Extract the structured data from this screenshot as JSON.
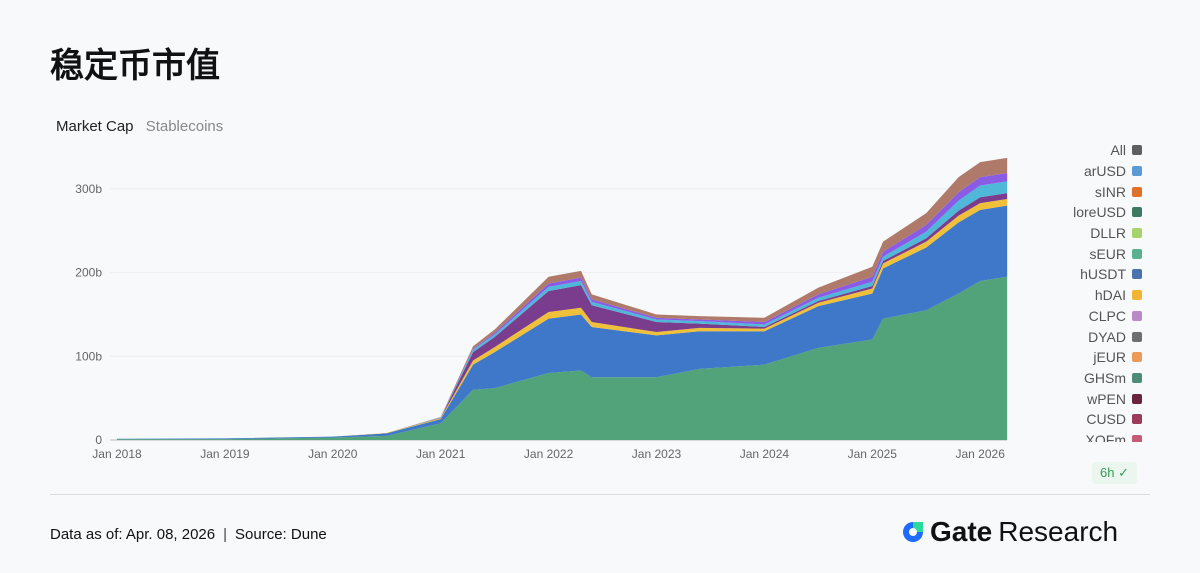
{
  "title": "稳定币市值",
  "tabs": [
    "Market Cap",
    "Stablecoins"
  ],
  "legend": [
    {
      "name": "All",
      "color": "#5f5f5f"
    },
    {
      "name": "arUSD",
      "color": "#5a9bd5"
    },
    {
      "name": "sINR",
      "color": "#e0712c"
    },
    {
      "name": "loreUSD",
      "color": "#3d7a62"
    },
    {
      "name": "DLLR",
      "color": "#a6d46a"
    },
    {
      "name": "sEUR",
      "color": "#5ab08f"
    },
    {
      "name": "hUSDT",
      "color": "#4a73ad"
    },
    {
      "name": "hDAI",
      "color": "#f2b533"
    },
    {
      "name": "CLPC",
      "color": "#b98bc4"
    },
    {
      "name": "DYAD",
      "color": "#6f6f6f"
    },
    {
      "name": "jEUR",
      "color": "#eb9a5a"
    },
    {
      "name": "GHSm",
      "color": "#4f8c76"
    },
    {
      "name": "wPEN",
      "color": "#6a2440"
    },
    {
      "name": "CUSD",
      "color": "#9a3b5a"
    },
    {
      "name": "XOFm",
      "color": "#c45a78"
    }
  ],
  "refresh_badge": "6h",
  "footer": {
    "date": "Data as of: Apr. 08, 2026",
    "source": "Source:  Dune",
    "brand": "Gate",
    "brand_suffix": "Research"
  },
  "chart_data": {
    "type": "area",
    "stacked": true,
    "xlabel": "",
    "ylabel": "",
    "ylim": [
      0,
      330
    ],
    "grid": true,
    "x_ticks": [
      "Jan 2018",
      "Jan 2019",
      "Jan 2020",
      "Jan 2021",
      "Jan 2022",
      "Jan 2023",
      "Jan 2024",
      "Jan 2025",
      "Jan 2026"
    ],
    "y_ticks": [
      {
        "v": 0,
        "label": "0"
      },
      {
        "v": 100,
        "label": "100b"
      },
      {
        "v": 200,
        "label": "200b"
      },
      {
        "v": 300,
        "label": "300b"
      }
    ],
    "x": [
      2018,
      2019,
      2020,
      2020.5,
      2021,
      2021.3,
      2021.5,
      2022,
      2022.3,
      2022.4,
      2023,
      2023.4,
      2024,
      2024.5,
      2025,
      2025.1,
      2025.5,
      2025.8,
      2026,
      2026.25
    ],
    "series": [
      {
        "color": "#52a27a",
        "values": [
          1,
          1,
          3,
          5,
          20,
          60,
          62,
          80,
          83,
          75,
          75,
          85,
          90,
          110,
          120,
          145,
          155,
          175,
          190,
          195
        ]
      },
      {
        "color": "#3f78c9",
        "values": [
          0.5,
          1,
          1,
          3,
          5,
          30,
          43,
          65,
          67,
          60,
          50,
          45,
          40,
          50,
          55,
          60,
          75,
          85,
          85,
          85
        ]
      },
      {
        "color": "#f0c03a",
        "values": [
          0,
          0,
          0,
          0.5,
          1,
          5,
          6,
          8,
          8,
          6,
          4,
          4,
          3,
          4,
          6,
          6,
          7,
          8,
          8,
          8
        ]
      },
      {
        "color": "#7a3d8e",
        "values": [
          0,
          0,
          0,
          0,
          0.5,
          10,
          12,
          25,
          27,
          20,
          12,
          5,
          2,
          2,
          3,
          3,
          4,
          6,
          7,
          7
        ]
      },
      {
        "color": "#4fb8d8",
        "values": [
          0,
          0,
          0,
          0,
          0.5,
          3,
          3,
          5,
          5,
          4,
          3,
          3,
          3,
          4,
          5,
          5,
          8,
          12,
          14,
          14
        ]
      },
      {
        "color": "#8a5ce6",
        "values": [
          0,
          0,
          0,
          0,
          0,
          1,
          2,
          4,
          4,
          3,
          2,
          2,
          3,
          4,
          6,
          6,
          8,
          10,
          10,
          10
        ]
      },
      {
        "color": "#b07a6a",
        "values": [
          0,
          0,
          0,
          0,
          0.5,
          3,
          4,
          8,
          8,
          6,
          4,
          4,
          5,
          8,
          12,
          12,
          14,
          18,
          18,
          18
        ]
      }
    ]
  }
}
